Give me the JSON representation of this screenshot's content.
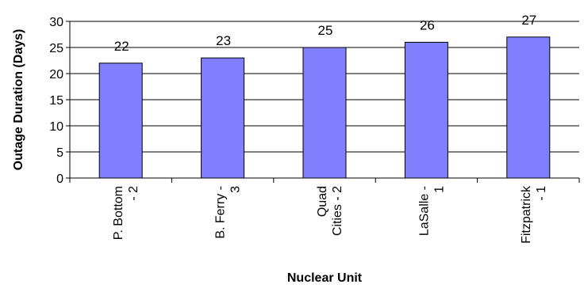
{
  "chart_data": {
    "type": "bar",
    "title": "",
    "xlabel": "Nuclear Unit",
    "ylabel": "Outage Duration (Days)",
    "ylim": [
      0,
      30
    ],
    "yticks": [
      0,
      5,
      10,
      15,
      20,
      25,
      30
    ],
    "categories": [
      [
        "P. Bottom",
        "- 2"
      ],
      [
        "B. Ferry -",
        "3"
      ],
      [
        "Quad",
        "Cities - 2"
      ],
      [
        "LaSalle -",
        "1"
      ],
      [
        "Fitzpatrick",
        "- 1"
      ]
    ],
    "values": [
      22,
      23,
      25,
      26,
      27
    ],
    "data_labels": [
      "22",
      "23",
      "25",
      "26",
      "27"
    ],
    "bar_color": "#8080ff",
    "grid": true,
    "legend": "none"
  }
}
